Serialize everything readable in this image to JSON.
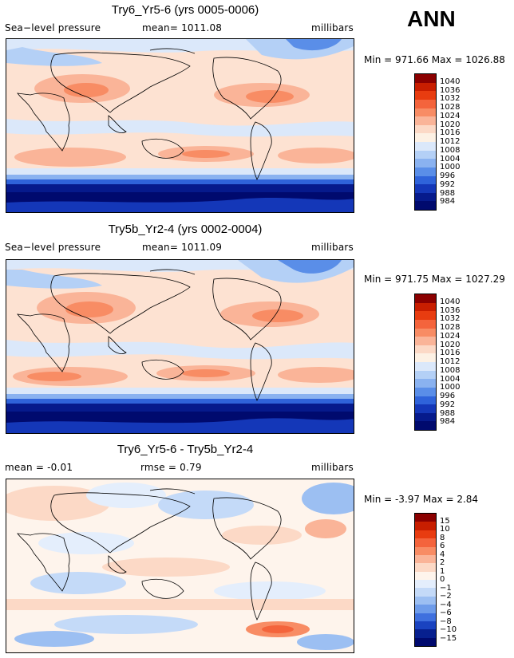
{
  "season": "ANN",
  "panels": [
    {
      "title": "Try6_Yr5-6 (yrs 0005-0006)",
      "left_label": "Sea−level pressure",
      "mean_text": "mean= 1011.08",
      "units": "millibars",
      "minmax": "Min = 971.66 Max = 1026.88",
      "levels": [
        "1040",
        "1036",
        "1032",
        "1028",
        "1024",
        "1020",
        "1016",
        "1012",
        "1008",
        "1004",
        "1000",
        "996",
        "992",
        "988",
        "984"
      ],
      "colors": [
        "#8b0000",
        "#c81e00",
        "#e83c10",
        "#f4643c",
        "#f88c64",
        "#fab498",
        "#fcd9c6",
        "#fdf1e4",
        "#dbe8fa",
        "#b4d0f6",
        "#8ab2f0",
        "#5a8ee8",
        "#2f63da",
        "#1437b8",
        "#061a8c",
        "#000a6e"
      ]
    },
    {
      "title": "Try5b_Yr2-4 (yrs 0002-0004)",
      "left_label": "Sea−level pressure",
      "mean_text": "mean= 1011.09",
      "units": "millibars",
      "minmax": "Min = 971.75 Max = 1027.29",
      "levels": [
        "1040",
        "1036",
        "1032",
        "1028",
        "1024",
        "1020",
        "1016",
        "1012",
        "1008",
        "1004",
        "1000",
        "996",
        "992",
        "988",
        "984"
      ],
      "colors": [
        "#8b0000",
        "#c81e00",
        "#e83c10",
        "#f4643c",
        "#f88c64",
        "#fab498",
        "#fcd9c6",
        "#fdf1e4",
        "#dbe8fa",
        "#b4d0f6",
        "#8ab2f0",
        "#5a8ee8",
        "#2f63da",
        "#1437b8",
        "#061a8c",
        "#000a6e"
      ]
    },
    {
      "title": "Try6_Yr5-6 - Try5b_Yr2-4",
      "mean_text": "mean =   -0.01",
      "rmse_text": "rmse =    0.79",
      "units": "millibars",
      "minmax": "Min =   -3.97 Max =    2.84",
      "levels": [
        "15",
        "10",
        "8",
        "6",
        "4",
        "2",
        "1",
        "0",
        "−1",
        "−2",
        "−4",
        "−6",
        "−8",
        "−10",
        "−15"
      ],
      "colors": [
        "#8b0000",
        "#c81e00",
        "#e83c10",
        "#f4643c",
        "#f88c64",
        "#fab498",
        "#fcd9c6",
        "#fef4ec",
        "#e4eefc",
        "#c4daf8",
        "#9cbff2",
        "#6e9cea",
        "#3f70de",
        "#1a43c0",
        "#07208f",
        "#000a6e"
      ]
    }
  ]
}
